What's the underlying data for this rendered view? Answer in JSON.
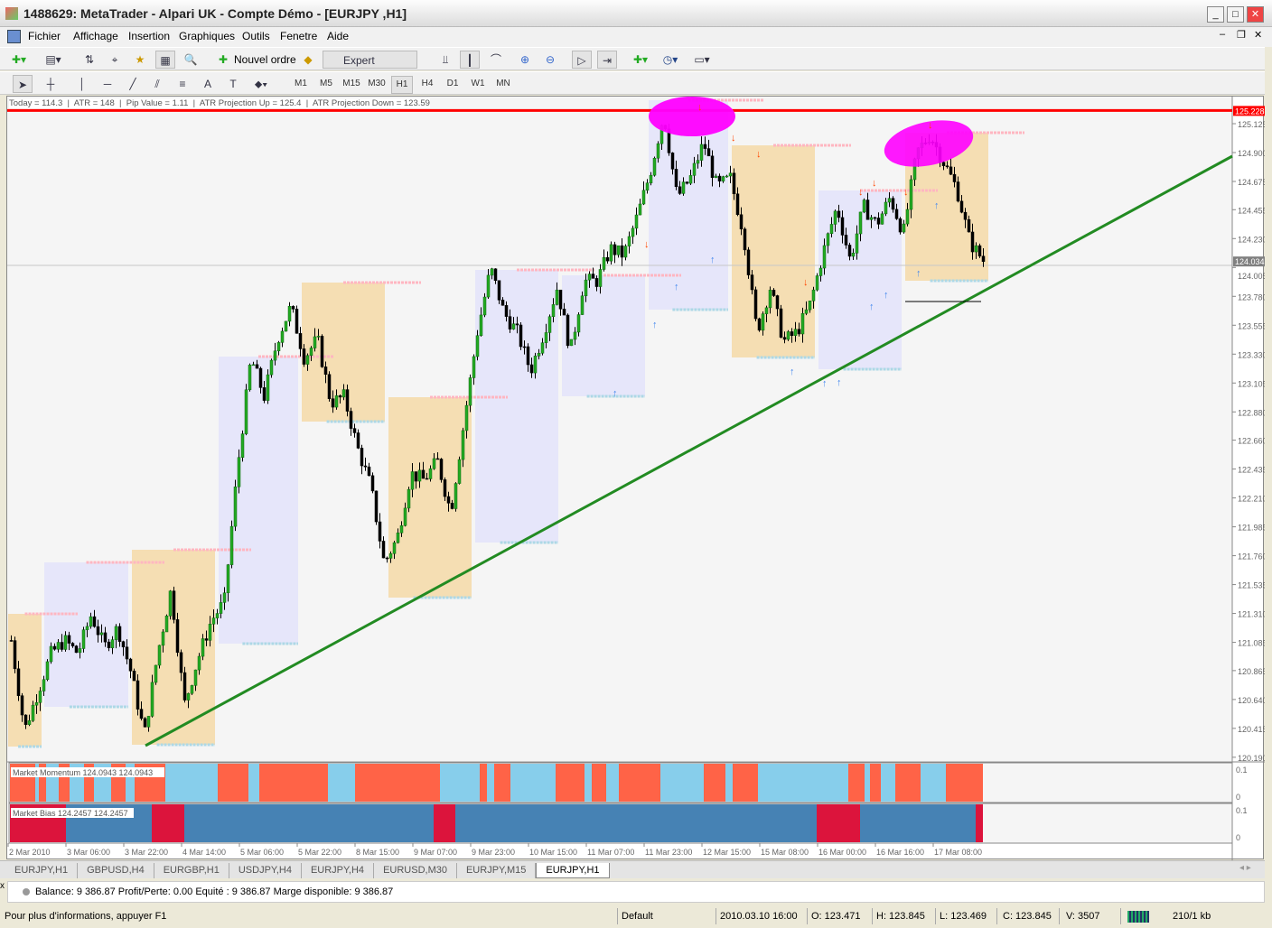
{
  "window": {
    "title": "1488629: MetaTrader - Alpari UK - Compte Démo - [EURJPY ,H1]"
  },
  "menu": [
    "Fichier",
    "Affichage",
    "Insertion",
    "Graphiques",
    "Outils",
    "Fenetre",
    "Aide"
  ],
  "toolbar": {
    "new_order": "Nouvel ordre",
    "expert_advisors": "Expert Advisors"
  },
  "drawing_tools": {
    "text_tool": "A"
  },
  "timeframes": [
    "M1",
    "M5",
    "M15",
    "M30",
    "H1",
    "H4",
    "D1",
    "W1",
    "MN"
  ],
  "active_timeframe": "H1",
  "info_line": {
    "today": "Today = 114.3",
    "atr": "ATR = 148",
    "pip_value": "Pip Value = 1.11",
    "atr_up": "ATR Projection Up = 125.4",
    "atr_down": "ATR Projection Down = 123.59"
  },
  "chart_data": {
    "type": "candlestick",
    "symbol": "EURJPY",
    "timeframe": "H1",
    "y_ticks": [
      "125.125",
      "124.900",
      "124.675",
      "124.455",
      "124.230",
      "124.005",
      "123.780",
      "123.555",
      "123.330",
      "123.105",
      "122.880",
      "122.660",
      "122.435",
      "122.210",
      "121.985",
      "121.760",
      "121.535",
      "121.310",
      "121.085",
      "120.865",
      "120.640",
      "120.415",
      "120.190"
    ],
    "x_ticks": [
      "2 Mar 2010",
      "3 Mar 06:00",
      "3 Mar 22:00",
      "4 Mar 14:00",
      "5 Mar 06:00",
      "5 Mar 22:00",
      "8 Mar 15:00",
      "9 Mar 07:00",
      "9 Mar 23:00",
      "10 Mar 15:00",
      "11 Mar 07:00",
      "11 Mar 23:00",
      "12 Mar 15:00",
      "15 Mar 08:00",
      "16 Mar 00:00",
      "16 Mar 16:00",
      "17 Mar 08:00"
    ],
    "ylim": [
      120.19,
      125.3
    ],
    "red_line_price": "125.228",
    "current_price": "124.034",
    "price_path": [
      121.1,
      120.4,
      120.7,
      121.0,
      121.1,
      121.0,
      121.3,
      121.05,
      121.2,
      120.85,
      120.36,
      121.0,
      121.5,
      120.6,
      120.95,
      121.25,
      121.4,
      122.45,
      123.3,
      123.0,
      123.45,
      123.7,
      123.3,
      123.45,
      122.95,
      123.0,
      122.6,
      122.3,
      121.7,
      121.9,
      122.4,
      122.35,
      122.5,
      122.1,
      122.8,
      123.5,
      124.0,
      123.65,
      123.5,
      123.2,
      123.5,
      123.85,
      123.35,
      123.9,
      123.9,
      124.15,
      124.1,
      124.4,
      124.75,
      125.2,
      124.55,
      124.7,
      124.98,
      124.63,
      124.7,
      124.27,
      123.5,
      123.85,
      123.43,
      123.5,
      123.72,
      124.13,
      124.48,
      124.06,
      124.48,
      124.34,
      124.55,
      124.27,
      124.9,
      125.04,
      124.83,
      124.62,
      124.2,
      124.06
    ],
    "indicators": [
      {
        "name": "Market Momentum 124.0943 124.0943",
        "axis": [
          "0.1",
          "0"
        ],
        "colors": [
          "#ff6347",
          "#87ceeb"
        ]
      },
      {
        "name": "Market Bias 124.2457 124.2457",
        "axis": [
          "0.1",
          "0"
        ],
        "colors": [
          "#dc143c",
          "#4682b4"
        ]
      }
    ],
    "trendline_color": "#228b22"
  },
  "tabs": [
    "EURJPY,H1",
    "GBPUSD,H4",
    "EURGBP,H1",
    "USDJPY,H4",
    "EURJPY,H4",
    "EURUSD,M30",
    "EURJPY,M15",
    "EURJPY,H1"
  ],
  "active_tab": 7,
  "terminal": {
    "balance": "Balance: 9 386.87  Profit/Perte: 0.00  Equité : 9 386.87  Marge disponible: 9 386.87"
  },
  "status": {
    "help": "Pour plus d'informations, appuyer F1",
    "profile": "Default",
    "datetime": "2010.03.10 16:00",
    "open": "O: 123.471",
    "high": "H: 123.845",
    "low": "L: 123.469",
    "close": "C: 123.845",
    "volume": "V: 3507",
    "traffic": "210/1 kb"
  }
}
